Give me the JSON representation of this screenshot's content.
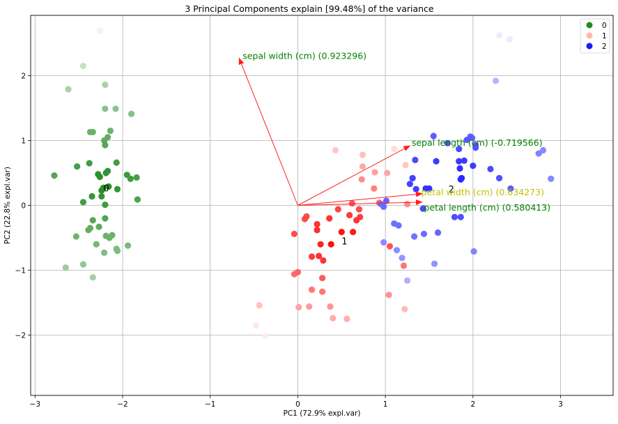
{
  "chart_data": {
    "type": "scatter",
    "title": "3 Principal Components explain [99.48%] of the variance",
    "xlabel": "PC1 (72.9% expl.var)",
    "ylabel": "PC2 (22.8% expl.var)",
    "xlim": [
      -3.05,
      3.6
    ],
    "ylim": [
      -2.93,
      2.93
    ],
    "xticks": [
      -3,
      -2,
      -1,
      0,
      1,
      2,
      3
    ],
    "yticks": [
      -2,
      -1,
      0,
      1,
      2
    ],
    "grid": true,
    "legend_position": "top-right",
    "series": [
      {
        "name": "0",
        "color": "#228b22",
        "points": [
          [
            -2.26,
            2.69
          ],
          [
            -2.45,
            2.15
          ],
          [
            -2.62,
            1.79
          ],
          [
            -2.2,
            1.86
          ],
          [
            -2.2,
            1.49
          ],
          [
            -2.08,
            1.49
          ],
          [
            -1.9,
            1.41
          ],
          [
            -2.14,
            1.15
          ],
          [
            -2.37,
            1.13
          ],
          [
            -2.34,
            1.13
          ],
          [
            -2.21,
            1.0
          ],
          [
            -2.17,
            1.05
          ],
          [
            -2.2,
            0.93
          ],
          [
            -2.38,
            0.65
          ],
          [
            -2.07,
            0.66
          ],
          [
            -2.52,
            0.6
          ],
          [
            -2.17,
            0.53
          ],
          [
            -2.19,
            0.5
          ],
          [
            -2.28,
            0.48
          ],
          [
            -2.26,
            0.44
          ],
          [
            -1.95,
            0.47
          ],
          [
            -1.91,
            0.41
          ],
          [
            -1.84,
            0.43
          ],
          [
            -2.78,
            0.46
          ],
          [
            -2.22,
            0.27
          ],
          [
            -2.16,
            0.29
          ],
          [
            -2.06,
            0.25
          ],
          [
            -2.24,
            0.23
          ],
          [
            -2.35,
            0.14
          ],
          [
            -2.24,
            0.14
          ],
          [
            -1.83,
            0.09
          ],
          [
            -2.45,
            0.05
          ],
          [
            -2.2,
            0.01
          ],
          [
            -2.34,
            -0.23
          ],
          [
            -2.2,
            -0.2
          ],
          [
            -2.27,
            -0.33
          ],
          [
            -2.37,
            -0.35
          ],
          [
            -2.39,
            -0.38
          ],
          [
            -2.19,
            -0.47
          ],
          [
            -2.12,
            -0.46
          ],
          [
            -2.15,
            -0.5
          ],
          [
            -2.53,
            -0.48
          ],
          [
            -2.3,
            -0.6
          ],
          [
            -1.94,
            -0.62
          ],
          [
            -2.07,
            -0.67
          ],
          [
            -2.06,
            -0.7
          ],
          [
            -2.21,
            -0.73
          ],
          [
            -2.45,
            -0.91
          ],
          [
            -2.65,
            -0.96
          ],
          [
            -2.34,
            -1.11
          ]
        ],
        "label": "0",
        "label_at": [
          -2.22,
          0.26
        ]
      },
      {
        "name": "1",
        "color": "#ffb6b0",
        "points": [
          [
            1.1,
            0.87
          ],
          [
            0.43,
            0.85
          ],
          [
            0.74,
            0.78
          ],
          [
            0.74,
            0.6
          ],
          [
            0.88,
            0.51
          ],
          [
            1.02,
            0.5
          ],
          [
            1.23,
            0.62
          ],
          [
            0.73,
            0.4
          ],
          [
            0.87,
            0.26
          ],
          [
            0.93,
            0.04
          ],
          [
            1.25,
            0.02
          ],
          [
            0.62,
            0.03
          ],
          [
            0.7,
            -0.06
          ],
          [
            0.46,
            -0.06
          ],
          [
            0.59,
            -0.15
          ],
          [
            0.36,
            -0.2
          ],
          [
            0.71,
            -0.18
          ],
          [
            0.67,
            -0.23
          ],
          [
            0.08,
            -0.21
          ],
          [
            0.1,
            -0.17
          ],
          [
            0.22,
            -0.29
          ],
          [
            0.22,
            -0.38
          ],
          [
            0.5,
            -0.41
          ],
          [
            0.63,
            -0.41
          ],
          [
            -0.04,
            -0.44
          ],
          [
            0.26,
            -0.6
          ],
          [
            0.38,
            -0.6
          ],
          [
            1.05,
            -0.63
          ],
          [
            0.16,
            -0.79
          ],
          [
            0.24,
            -0.78
          ],
          [
            0.29,
            -0.85
          ],
          [
            1.21,
            -0.93
          ],
          [
            -0.04,
            -1.06
          ],
          [
            0.0,
            -1.03
          ],
          [
            0.28,
            -1.12
          ],
          [
            0.16,
            -1.3
          ],
          [
            0.28,
            -1.33
          ],
          [
            1.04,
            -1.38
          ],
          [
            -0.44,
            -1.54
          ],
          [
            0.01,
            -1.57
          ],
          [
            0.13,
            -1.56
          ],
          [
            0.37,
            -1.56
          ],
          [
            1.22,
            -1.6
          ],
          [
            0.4,
            -1.74
          ],
          [
            0.56,
            -1.75
          ],
          [
            -0.48,
            -1.85
          ],
          [
            -0.37,
            -2.01
          ]
        ],
        "label": "1",
        "label_at": [
          0.5,
          -0.56
        ]
      },
      {
        "name": "2",
        "color": "#1a1aff",
        "points": [
          [
            2.3,
            2.62
          ],
          [
            2.42,
            2.56
          ],
          [
            2.26,
            1.92
          ],
          [
            1.55,
            1.07
          ],
          [
            1.97,
            1.06
          ],
          [
            1.99,
            1.04
          ],
          [
            1.93,
            1.01
          ],
          [
            1.71,
            0.96
          ],
          [
            2.03,
            0.93
          ],
          [
            2.03,
            0.89
          ],
          [
            1.84,
            0.87
          ],
          [
            2.75,
            0.8
          ],
          [
            2.8,
            0.85
          ],
          [
            1.34,
            0.7
          ],
          [
            1.9,
            0.69
          ],
          [
            1.84,
            0.68
          ],
          [
            1.58,
            0.68
          ],
          [
            1.85,
            0.57
          ],
          [
            2.2,
            0.56
          ],
          [
            2.0,
            0.61
          ],
          [
            1.31,
            0.42
          ],
          [
            1.86,
            0.4
          ],
          [
            1.87,
            0.42
          ],
          [
            2.3,
            0.42
          ],
          [
            2.89,
            0.41
          ],
          [
            1.28,
            0.33
          ],
          [
            1.46,
            0.26
          ],
          [
            1.35,
            0.25
          ],
          [
            1.5,
            0.26
          ],
          [
            2.43,
            0.26
          ],
          [
            1.01,
            0.07
          ],
          [
            0.95,
            0.02
          ],
          [
            0.98,
            -0.02
          ],
          [
            1.43,
            -0.05
          ],
          [
            1.79,
            -0.18
          ],
          [
            1.86,
            -0.18
          ],
          [
            1.1,
            -0.28
          ],
          [
            1.15,
            -0.31
          ],
          [
            1.44,
            -0.44
          ],
          [
            1.6,
            -0.42
          ],
          [
            1.33,
            -0.48
          ],
          [
            0.98,
            -0.57
          ],
          [
            1.13,
            -0.69
          ],
          [
            2.01,
            -0.71
          ],
          [
            1.19,
            -0.81
          ],
          [
            1.56,
            -0.9
          ],
          [
            1.25,
            -1.16
          ]
        ],
        "label": "2",
        "label_at": [
          1.72,
          0.24
        ]
      }
    ],
    "loadings": [
      {
        "feature": "sepal width (cm)",
        "label": "sepal width (cm) (0.923296)",
        "x": -0.67,
        "y": 2.27,
        "label_at": [
          -0.63,
          2.3
        ],
        "label_color": "#008000"
      },
      {
        "feature": "sepal length (cm)",
        "label": "sepal length (cm) (-0.719566)",
        "x": 1.28,
        "y": 0.92,
        "label_at": [
          1.3,
          0.96
        ],
        "label_color": "#008000"
      },
      {
        "feature": "petal width (cm)",
        "label": "petal width (cm) (0.634273)",
        "x": 1.42,
        "y": 0.18,
        "label_at": [
          1.41,
          0.2
        ],
        "label_color": "#bfbf00"
      },
      {
        "feature": "petal length (cm)",
        "label": "petal length (cm) (0.580413)",
        "x": 1.42,
        "y": 0.05,
        "label_at": [
          1.44,
          -0.04
        ],
        "label_color": "#008000"
      }
    ],
    "arrow_color": "#ff2020"
  }
}
